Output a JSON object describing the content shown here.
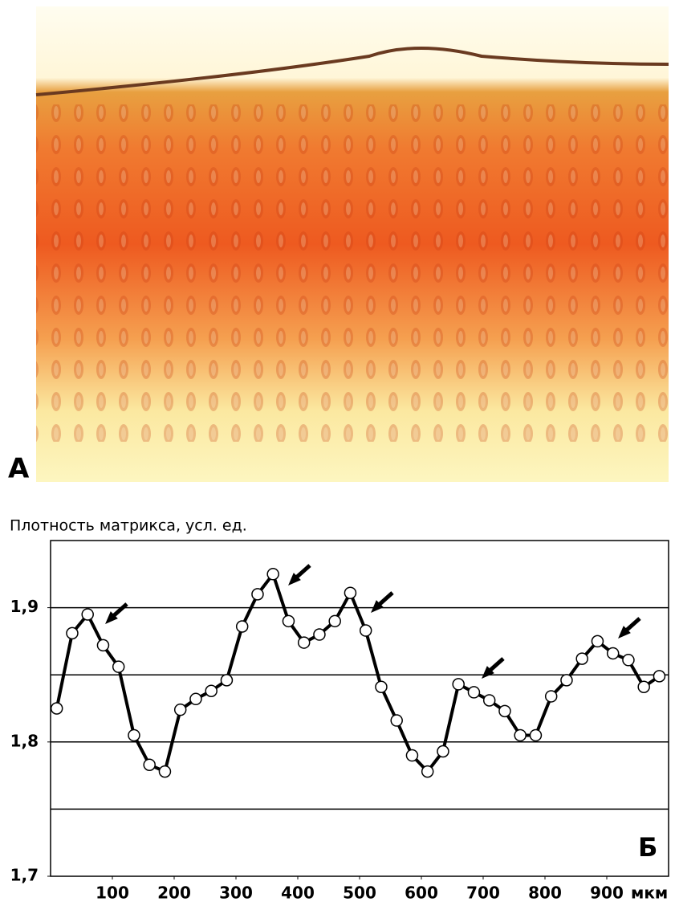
{
  "panel_a_label": "A",
  "chart_data": {
    "type": "line",
    "panel_label": "Б",
    "y_axis_title": "Плотность матрикса, усл. ед.",
    "x_unit": "мкм",
    "x": [
      10,
      35,
      60,
      85,
      110,
      135,
      160,
      185,
      210,
      235,
      260,
      285,
      310,
      335,
      360,
      385,
      410,
      435,
      460,
      485,
      510,
      535,
      560,
      585,
      610,
      635,
      660,
      685,
      710,
      735,
      760,
      785,
      810,
      835,
      860,
      885,
      910,
      935,
      960,
      985
    ],
    "series": [
      {
        "color": "#000000",
        "values": [
          1.825,
          1.881,
          1.895,
          1.872,
          1.856,
          1.805,
          1.783,
          1.778,
          1.824,
          1.832,
          1.838,
          1.846,
          1.886,
          1.91,
          1.925,
          1.89,
          1.874,
          1.88,
          1.89,
          1.911,
          1.883,
          1.841,
          1.816,
          1.79,
          1.778,
          1.793,
          1.843,
          1.837,
          1.831,
          1.823,
          1.805,
          1.805,
          1.834,
          1.846,
          1.862,
          1.875,
          1.866,
          1.861,
          1.841,
          1.849
        ]
      }
    ],
    "xlim": [
      0,
      1000
    ],
    "xticks": [
      100,
      200,
      300,
      400,
      500,
      600,
      700,
      800,
      900
    ],
    "ylim": [
      1.7,
      1.95
    ],
    "yticks": [
      {
        "value": 1.7,
        "label": "1,7"
      },
      {
        "value": 1.8,
        "label": "1,8"
      },
      {
        "value": 1.9,
        "label": "1,9"
      }
    ],
    "ygrid": [
      1.75,
      1.8,
      1.85,
      1.9
    ],
    "grid": true
  }
}
